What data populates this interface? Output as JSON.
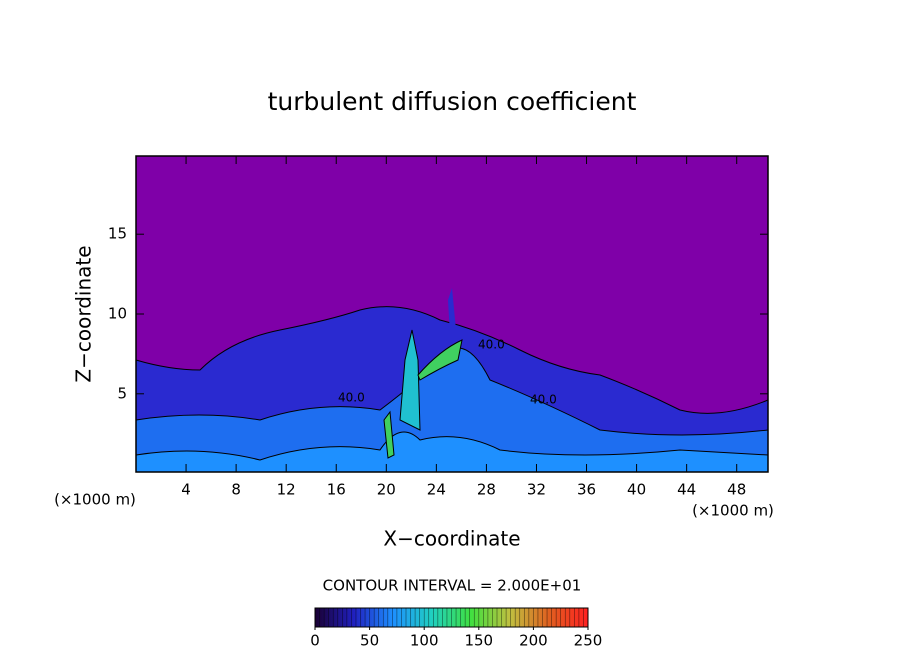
{
  "chart_data": {
    "type": "contour",
    "title": "turbulent diffusion coefficient",
    "x_label": "X−coordinate",
    "y_label": "Z−coordinate",
    "x_unit_label": "(×1000 m)",
    "y_unit_label": "(×1000 m)",
    "xlim": [
      0,
      50.5
    ],
    "ylim": [
      0.1,
      19.9
    ],
    "xticks": [
      4,
      8,
      12,
      16,
      20,
      24,
      28,
      32,
      36,
      40,
      44,
      48
    ],
    "yticks": [
      5,
      10,
      15
    ],
    "contour_interval_label": "CONTOUR INTERVAL = 2.000E+01",
    "contour_labels": [
      "40.0",
      "40.0",
      "40.0"
    ],
    "colorbar_lim": [
      0,
      250
    ],
    "colorbar_ticks": [
      0,
      50,
      100,
      150,
      200,
      250
    ],
    "colormap": [
      "#1a0033",
      "#2020c0",
      "#1e90ff",
      "#20d0c0",
      "#40e040",
      "#c0c040",
      "#e06020",
      "#ff2020"
    ],
    "background_color": "#7f00a8"
  }
}
